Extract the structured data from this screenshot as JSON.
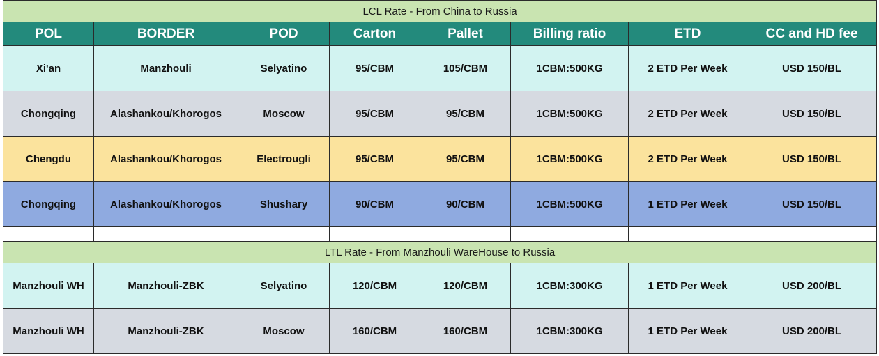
{
  "lcl_section": {
    "title": "LCL Rate - From China to Russia",
    "rows": [
      {
        "pol": "Xi'an",
        "border": "Manzhouli",
        "pod": "Selyatino",
        "carton": "95/CBM",
        "pallet": "105/CBM",
        "billing_ratio": "1CBM:500KG",
        "etd": "2 ETD Per Week",
        "fee": "USD 150/BL",
        "color": "#d2f3f1"
      },
      {
        "pol": "Chongqing",
        "border": "Alashankou/Khorogos",
        "pod": "Moscow",
        "carton": "95/CBM",
        "pallet": "95/CBM",
        "billing_ratio": "1CBM:500KG",
        "etd": "2 ETD Per Week",
        "fee": "USD 150/BL",
        "color": "#d6dae1"
      },
      {
        "pol": "Chengdu",
        "border": "Alashankou/Khorogos",
        "pod": "Electrougli",
        "carton": "95/CBM",
        "pallet": "95/CBM",
        "billing_ratio": "1CBM:500KG",
        "etd": "2 ETD Per Week",
        "fee": "USD 150/BL",
        "color": "#fbe39d"
      },
      {
        "pol": "Chongqing",
        "border": "Alashankou/Khorogos",
        "pod": "Shushary",
        "carton": "90/CBM",
        "pallet": "90/CBM",
        "billing_ratio": "1CBM:500KG",
        "etd": "1 ETD Per Week",
        "fee": "USD 150/BL",
        "color": "#8faae0"
      }
    ]
  },
  "headers": {
    "pol": "POL",
    "border": "BORDER",
    "pod": "POD",
    "carton": "Carton",
    "pallet": "Pallet",
    "billing_ratio": "Billing ratio",
    "etd": "ETD",
    "fee": "CC and HD fee"
  },
  "ltl_section": {
    "title": "LTL Rate - From Manzhouli WareHouse to Russia",
    "rows": [
      {
        "pol": "Manzhouli WH",
        "border": "Manzhouli-ZBK",
        "pod": "Selyatino",
        "carton": "120/CBM",
        "pallet": "120/CBM",
        "billing_ratio": "1CBM:300KG",
        "etd": "1 ETD Per Week",
        "fee": "USD 200/BL",
        "color": "#d2f3f1"
      },
      {
        "pol": "Manzhouli WH",
        "border": "Manzhouli-ZBK",
        "pod": "Moscow",
        "carton": "160/CBM",
        "pallet": "160/CBM",
        "billing_ratio": "1CBM:300KG",
        "etd": "1 ETD Per Week",
        "fee": "USD 200/BL",
        "color": "#d6dae1"
      }
    ]
  },
  "colors": {
    "title_bg": "#c9e4b1",
    "header_bg": "#238a7c",
    "header_text": "#ffffff",
    "border": "#2b2b2b"
  }
}
